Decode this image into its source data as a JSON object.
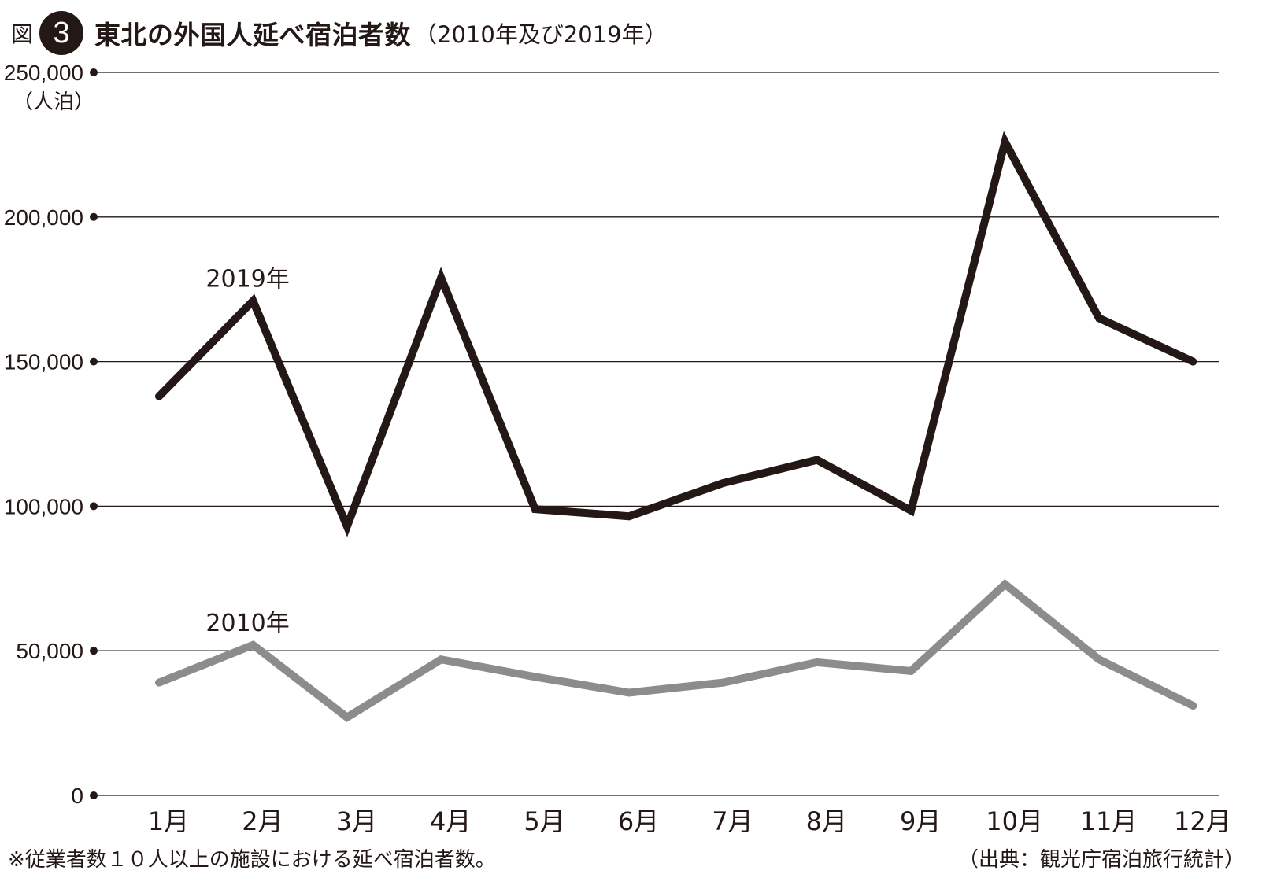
{
  "header": {
    "fig_label": "図",
    "fig_number": "3",
    "title": "東北の外国人延べ宿泊者数",
    "subtitle": "（2010年及び2019年）"
  },
  "footnote": "※従業者数１０人以上の施設における延べ宿泊者数。",
  "source": "（出典：観光庁宿泊旅行統計）",
  "chart_data": {
    "type": "line",
    "title": "東北の外国人延べ宿泊者数",
    "subtitle": "（2010年及び2019年）",
    "ylabel": "（人泊）",
    "ylim": [
      0,
      250000
    ],
    "yticks": [
      0,
      50000,
      100000,
      150000,
      200000,
      250000
    ],
    "ytick_labels": [
      "0",
      "50,000",
      "100,000",
      "150,000",
      "200,000",
      "250,000"
    ],
    "categories": [
      "1月",
      "2月",
      "3月",
      "4月",
      "5月",
      "6月",
      "7月",
      "8月",
      "9月",
      "10月",
      "11月",
      "12月"
    ],
    "grid": true,
    "legend": "inline labels",
    "series": [
      {
        "name": "2019年",
        "color": "#231815",
        "values": [
          138000,
          171000,
          93000,
          179000,
          99000,
          96500,
          108000,
          116000,
          98500,
          226000,
          165000,
          150000
        ]
      },
      {
        "name": "2010年",
        "color": "#8c8c8c",
        "values": [
          39000,
          52000,
          27000,
          47000,
          41000,
          35500,
          39000,
          46000,
          43000,
          73000,
          47000,
          31000
        ]
      }
    ]
  }
}
